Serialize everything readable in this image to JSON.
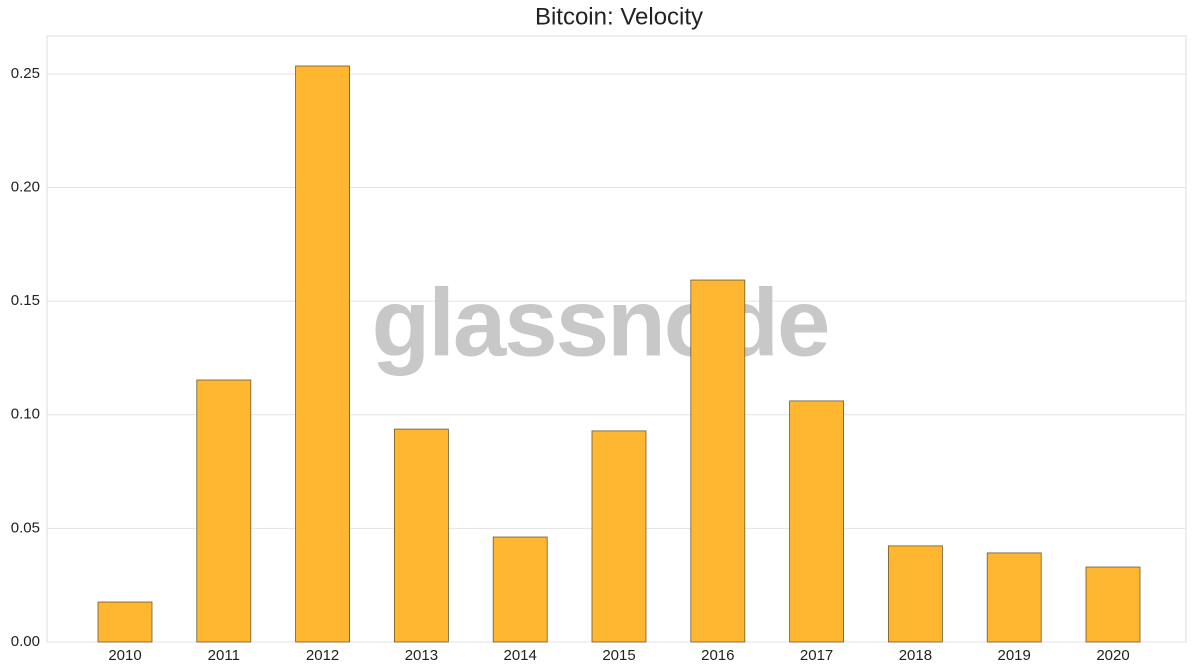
{
  "chart_data": {
    "type": "bar",
    "title": "Bitcoin: Velocity",
    "watermark": "glassnode",
    "categories": [
      "2010",
      "2011",
      "2012",
      "2013",
      "2014",
      "2015",
      "2016",
      "2017",
      "2018",
      "2019",
      "2020"
    ],
    "values": [
      0.0176,
      0.1153,
      0.2535,
      0.0937,
      0.0462,
      0.0929,
      0.1593,
      0.1061,
      0.0423,
      0.0392,
      0.033
    ],
    "color": "#ffb732",
    "edge_color": "#6b5a2e",
    "ylim": [
      0,
      0.2667
    ],
    "yticks": [
      {
        "value": 0,
        "label": "0.00"
      },
      {
        "value": 0.05,
        "label": "0.05"
      },
      {
        "value": 0.1,
        "label": "0.10"
      },
      {
        "value": 0.15,
        "label": "0.15"
      },
      {
        "value": 0.2,
        "label": "0.20"
      },
      {
        "value": 0.25,
        "label": "0.25"
      }
    ],
    "grid": true
  }
}
